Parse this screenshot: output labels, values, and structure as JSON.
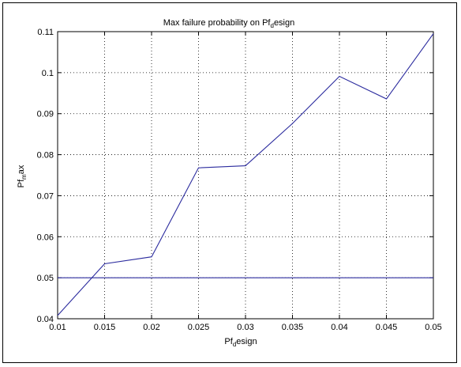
{
  "chart_data": {
    "type": "line",
    "title": "Max failure probability on Pf",
    "title_sub": "d",
    "title_tail": "esign",
    "xlabel": "Pf",
    "xlabel_sub": "d",
    "xlabel_tail": "esign",
    "ylabel": "Pf",
    "ylabel_sub": "m",
    "ylabel_tail": "ax",
    "xlim": [
      0.01,
      0.05
    ],
    "ylim": [
      0.04,
      0.11
    ],
    "xticks": [
      "0.01",
      "0.015",
      "0.02",
      "0.025",
      "0.03",
      "0.035",
      "0.04",
      "0.045",
      "0.05"
    ],
    "yticks": [
      "0.04",
      "0.05",
      "0.06",
      "0.07",
      "0.08",
      "0.09",
      "0.1",
      "0.11"
    ],
    "grid": true,
    "series": [
      {
        "color": "#2b2b9e",
        "x": [
          0.01,
          0.015,
          0.02,
          0.025,
          0.03,
          0.035,
          0.04,
          0.045,
          0.05
        ],
        "y": [
          0.0408,
          0.0534,
          0.0551,
          0.0768,
          0.0773,
          0.0876,
          0.0991,
          0.0936,
          0.1095
        ]
      },
      {
        "color": "#2b2b9e",
        "x": [
          0.01,
          0.05
        ],
        "y": [
          0.05,
          0.05
        ]
      }
    ]
  }
}
